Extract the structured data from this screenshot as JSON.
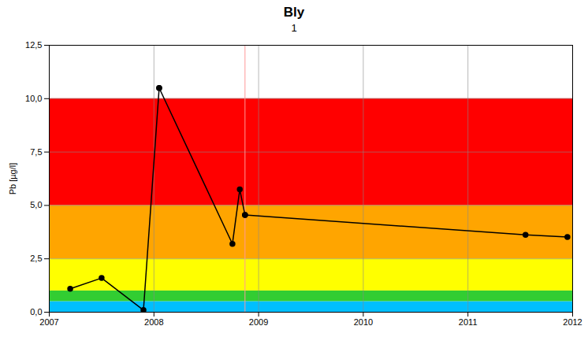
{
  "chart_data": {
    "type": "line",
    "title": "Bly",
    "subtitle": "1",
    "ylabel": "Pb [µg/l]",
    "xlim": [
      2007,
      2012
    ],
    "ylim": [
      0,
      12.5
    ],
    "xticks": [
      2007,
      2008,
      2009,
      2010,
      2011,
      2012
    ],
    "yticks": [
      {
        "value": 0.0,
        "label": "0,0"
      },
      {
        "value": 2.5,
        "label": "2,5"
      },
      {
        "value": 5.0,
        "label": "5,0"
      },
      {
        "value": 7.5,
        "label": "7,5"
      },
      {
        "value": 10.0,
        "label": "10,0"
      },
      {
        "value": 12.5,
        "label": "12,5"
      }
    ],
    "grid": true,
    "color": "black",
    "marker": "circle",
    "bands": [
      {
        "y1": 0,
        "y2": 0.5,
        "color": "#00BFFF"
      },
      {
        "y1": 0.5,
        "y2": 1.0,
        "color": "#32CD32"
      },
      {
        "y1": 1.0,
        "y2": 2.5,
        "color": "#FFFF00"
      },
      {
        "y1": 2.5,
        "y2": 5.0,
        "color": "#FFA500"
      },
      {
        "y1": 5.0,
        "y2": 10.0,
        "color": "#FF0000"
      }
    ],
    "vline": {
      "x": 2008.87,
      "color": "#FF9999"
    },
    "series": [
      {
        "x": [
          2007.2,
          2007.5,
          2007.9,
          2008.05
        ],
        "values": [
          1.1,
          1.6,
          0.1,
          10.5
        ]
      },
      {
        "x": [
          2008.05,
          2008.75,
          2008.82,
          2008.87
        ],
        "values": [
          10.5,
          3.2,
          5.75,
          4.55
        ]
      },
      {
        "x": [
          2008.87,
          2011.55,
          2011.95
        ],
        "values": [
          4.55,
          3.62,
          3.52
        ]
      }
    ]
  }
}
